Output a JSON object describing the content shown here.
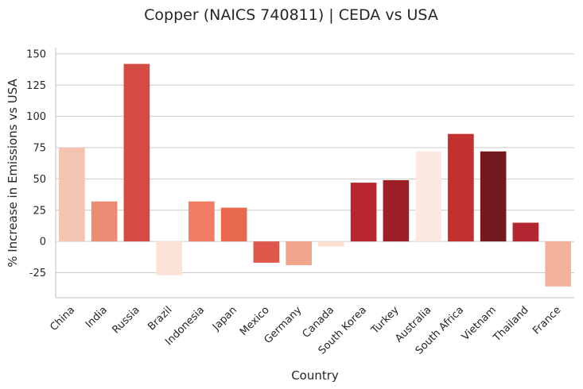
{
  "chart_data": {
    "type": "bar",
    "title": "Copper (NAICS 740811) | CEDA vs USA",
    "xlabel": "Country",
    "ylabel": "% Increase in Emissions vs USA",
    "categories": [
      "China",
      "India",
      "Russia",
      "Brazil",
      "Indonesia",
      "Japan",
      "Mexico",
      "Germany",
      "Canada",
      "South Korea",
      "Turkey",
      "Australia",
      "South Africa",
      "Vietnam",
      "Thailand",
      "France"
    ],
    "values": [
      75,
      32,
      142,
      -27,
      32,
      27,
      -17,
      -19,
      -4,
      47,
      49,
      72,
      86,
      72,
      15,
      -36
    ],
    "colors": [
      "#f4c4b0",
      "#ec8c74",
      "#d54a42",
      "#fbe2d6",
      "#ee7d64",
      "#e8684f",
      "#dd574a",
      "#f2a48c",
      "#fbe0d0",
      "#b8262e",
      "#9d1f25",
      "#fde9e0",
      "#c2302f",
      "#741a1e",
      "#b32530",
      "#f4b29c"
    ],
    "ylim": [
      -45,
      155
    ],
    "yticks": [
      -25,
      0,
      25,
      50,
      75,
      100,
      125,
      150
    ],
    "grid": "horizontal"
  }
}
